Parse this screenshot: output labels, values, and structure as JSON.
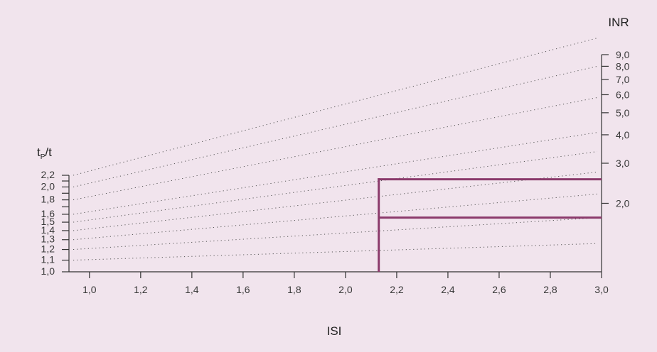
{
  "chart_data": {
    "type": "line",
    "title": "",
    "xlabel": "ISI",
    "ylabel_left": {
      "main": "t",
      "sub": "P",
      "rest": "/t"
    },
    "ylabel_right": "INR",
    "xlim": [
      0.92,
      3.0
    ],
    "x_ticks": [
      "1,0",
      "1,2",
      "1,4",
      "1,6",
      "1,8",
      "2,0",
      "2,2",
      "2,4",
      "2,6",
      "2,8",
      "3,0"
    ],
    "x_tick_values": [
      1.0,
      1.2,
      1.4,
      1.6,
      1.8,
      2.0,
      2.2,
      2.4,
      2.6,
      2.8,
      3.0
    ],
    "left_axis": {
      "ticks": [
        "1,0",
        "1,1",
        "1,2",
        "1,3",
        "1,4",
        "1,5",
        "1,6",
        "1,8",
        "2,0",
        "2,2"
      ],
      "tick_values": [
        1.0,
        1.1,
        1.2,
        1.3,
        1.4,
        1.5,
        1.6,
        1.8,
        2.0,
        2.2
      ]
    },
    "right_axis": {
      "ticks": [
        "2,0",
        "3,0",
        "4,0",
        "5,0",
        "6,0",
        "7,0",
        "8,0",
        "9,0"
      ],
      "tick_values": [
        2.0,
        3.0,
        4.0,
        5.0,
        6.0,
        7.0,
        8.0,
        9.0
      ]
    },
    "dotted_lines_tp_t": [
      1.1,
      1.2,
      1.3,
      1.4,
      1.5,
      1.6,
      1.8,
      2.0,
      2.2
    ],
    "highlight": {
      "isi": 2.13,
      "inr_values": [
        1.73,
        2.55
      ],
      "color": "#8b3a6b"
    },
    "colors": {
      "background": "#f1e4ed",
      "axis": "#333333",
      "dotted": "#555555",
      "highlight": "#8b3a6b"
    }
  }
}
